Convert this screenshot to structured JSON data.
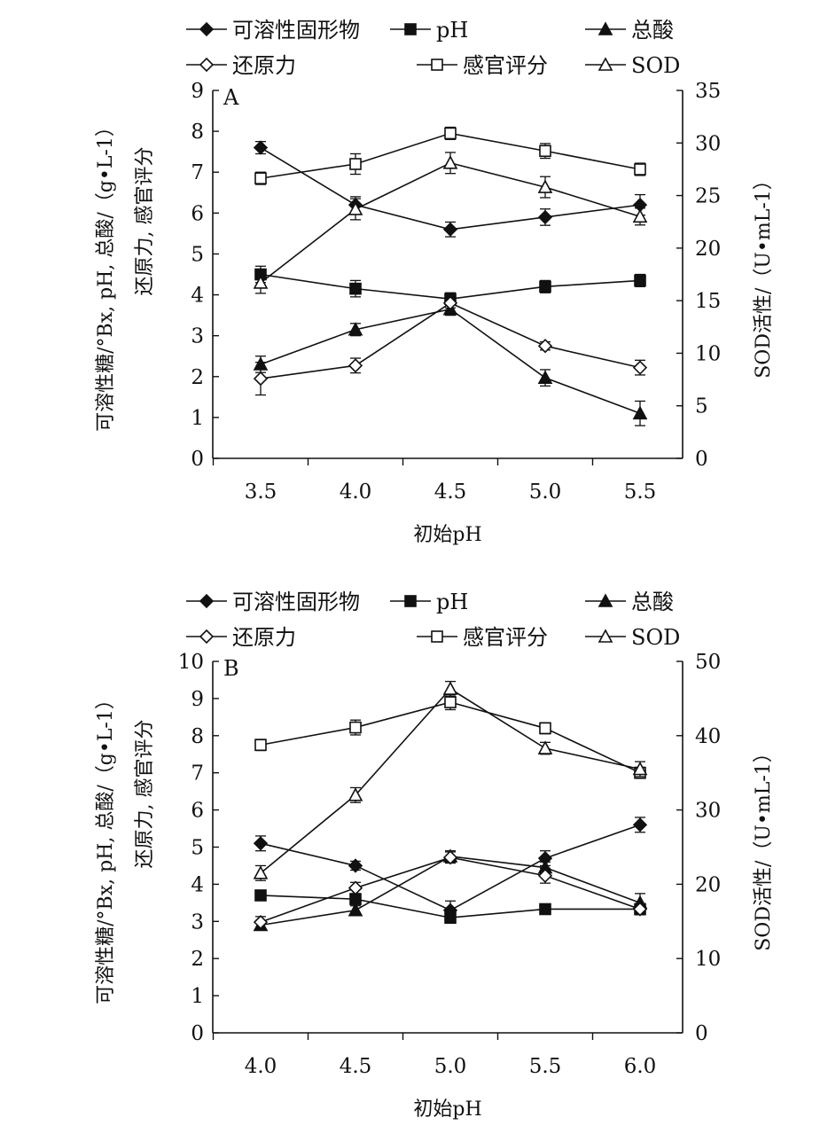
{
  "chart_data": [
    {
      "panel_label": "A",
      "type": "line",
      "xlabel": "初始pH",
      "ylabel_left_line1": "可溶性糖/°Bx, pH, 总酸/（g•L-1）",
      "ylabel_left_line2": "还原力, 感官评分",
      "ylabel_right": "SOD活性/（U•mL-1）",
      "x": [
        3.5,
        4.0,
        4.5,
        5.0,
        5.5
      ],
      "x_ticks": [
        "3.5",
        "4.0",
        "4.5",
        "5.0",
        "5.5"
      ],
      "ylim_left": [
        0,
        9
      ],
      "y_ticks_left": [
        "0",
        "1",
        "2",
        "3",
        "4",
        "5",
        "6",
        "7",
        "8",
        "9"
      ],
      "ylim_right": [
        0,
        35
      ],
      "y_ticks_right": [
        "0",
        "5",
        "10",
        "15",
        "20",
        "25",
        "30",
        "35"
      ],
      "legend": [
        "可溶性固形物",
        "pH",
        "总酸",
        "还原力",
        "感官评分",
        "SOD"
      ],
      "series": [
        {
          "name": "可溶性固形物",
          "axis": "left",
          "marker": "diamond-filled",
          "values": [
            7.6,
            6.2,
            5.6,
            5.9,
            6.2
          ],
          "errors": [
            0.15,
            0.2,
            0.18,
            0.2,
            0.25
          ]
        },
        {
          "name": "pH",
          "axis": "left",
          "marker": "square-filled",
          "values": [
            4.5,
            4.15,
            3.9,
            4.2,
            4.35
          ],
          "errors": [
            0.2,
            0.2,
            0.15,
            0.15,
            0.15
          ]
        },
        {
          "name": "总酸",
          "axis": "left",
          "marker": "triangle-filled",
          "values": [
            2.3,
            3.15,
            3.65,
            1.97,
            1.1
          ],
          "errors": [
            0.2,
            0.15,
            0.15,
            0.2,
            0.3
          ]
        },
        {
          "name": "还原力",
          "axis": "left",
          "marker": "diamond-open",
          "values": [
            1.95,
            2.27,
            3.8,
            2.75,
            2.22
          ],
          "errors": [
            0.4,
            0.18,
            0.12,
            0.1,
            0.18
          ]
        },
        {
          "name": "感官评分",
          "axis": "left",
          "marker": "square-open",
          "values": [
            6.85,
            7.2,
            7.95,
            7.52,
            7.07
          ],
          "errors": [
            0.15,
            0.25,
            0.15,
            0.18,
            0.15
          ]
        },
        {
          "name": "SOD",
          "axis": "right",
          "marker": "triangle-open",
          "values": [
            16.7,
            23.7,
            28.1,
            25.8,
            23.0
          ],
          "errors": [
            1.0,
            1.0,
            1.0,
            1.0,
            0.8
          ]
        }
      ]
    },
    {
      "panel_label": "B",
      "type": "line",
      "xlabel": "初始pH",
      "ylabel_left_line1": "可溶性糖/°Bx, pH, 总酸/（g•L-1）",
      "ylabel_left_line2": "还原力, 感官评分",
      "ylabel_right": "SOD活性/（U•mL-1）",
      "x": [
        4.0,
        4.5,
        5.0,
        5.5,
        6.0
      ],
      "x_ticks": [
        "4.0",
        "4.5",
        "5.0",
        "5.5",
        "6.0"
      ],
      "ylim_left": [
        0,
        10
      ],
      "y_ticks_left": [
        "0",
        "1",
        "2",
        "3",
        "4",
        "5",
        "6",
        "7",
        "8",
        "9",
        "10"
      ],
      "ylim_right": [
        0,
        50
      ],
      "y_ticks_right": [
        "0",
        "10",
        "20",
        "30",
        "40",
        "50"
      ],
      "legend": [
        "可溶性固形物",
        "pH",
        "总酸",
        "还原力",
        "感官评分",
        "SOD"
      ],
      "series": [
        {
          "name": "可溶性固形物",
          "axis": "left",
          "marker": "diamond-filled",
          "values": [
            5.1,
            4.5,
            3.3,
            4.7,
            5.6
          ],
          "errors": [
            0.2,
            0.12,
            0.25,
            0.2,
            0.2
          ]
        },
        {
          "name": "pH",
          "axis": "left",
          "marker": "square-filled",
          "values": [
            3.7,
            3.6,
            3.1,
            3.33,
            3.33
          ],
          "errors": [
            0.12,
            0.12,
            0.15,
            0.12,
            0.15
          ]
        },
        {
          "name": "总酸",
          "axis": "left",
          "marker": "triangle-filled",
          "values": [
            2.9,
            3.3,
            4.75,
            4.45,
            3.5
          ],
          "errors": [
            0.12,
            0.12,
            0.15,
            0.15,
            0.25
          ]
        },
        {
          "name": "还原力",
          "axis": "left",
          "marker": "diamond-open",
          "values": [
            2.98,
            3.9,
            4.72,
            4.23,
            3.33
          ],
          "errors": [
            0.15,
            0.15,
            0.15,
            0.2,
            0.15
          ]
        },
        {
          "name": "感官评分",
          "axis": "left",
          "marker": "square-open",
          "values": [
            7.75,
            8.22,
            8.9,
            8.2,
            7.0
          ],
          "errors": [
            0.15,
            0.2,
            0.2,
            0.15,
            0.15
          ]
        },
        {
          "name": "SOD",
          "axis": "right",
          "marker": "triangle-open",
          "values": [
            21.5,
            32.0,
            46.3,
            38.3,
            35.5
          ],
          "errors": [
            1.0,
            1.0,
            1.0,
            0.8,
            1.0
          ]
        }
      ]
    }
  ]
}
